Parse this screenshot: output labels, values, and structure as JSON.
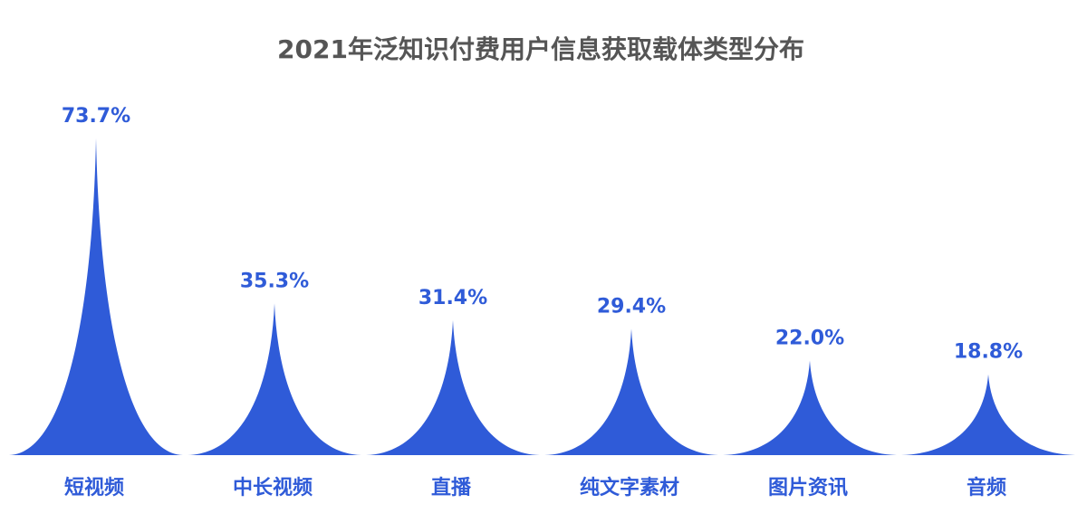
{
  "chart_data": {
    "type": "bar",
    "title": "2021年泛知识付费用户信息获取载体类型分布",
    "categories": [
      "短视频",
      "中长视频",
      "直播",
      "纯文字素材",
      "图片资讯",
      "音频"
    ],
    "values": [
      73.7,
      35.3,
      31.4,
      29.4,
      22.0,
      18.8
    ],
    "value_labels": [
      "73.7%",
      "35.3%",
      "31.4%",
      "29.4%",
      "22.0%",
      "18.8%"
    ],
    "unit": "%",
    "ylim": [
      0,
      80
    ],
    "grid": false,
    "legend": "none",
    "mark_shape": "spike",
    "color": "#2f5bd8"
  }
}
